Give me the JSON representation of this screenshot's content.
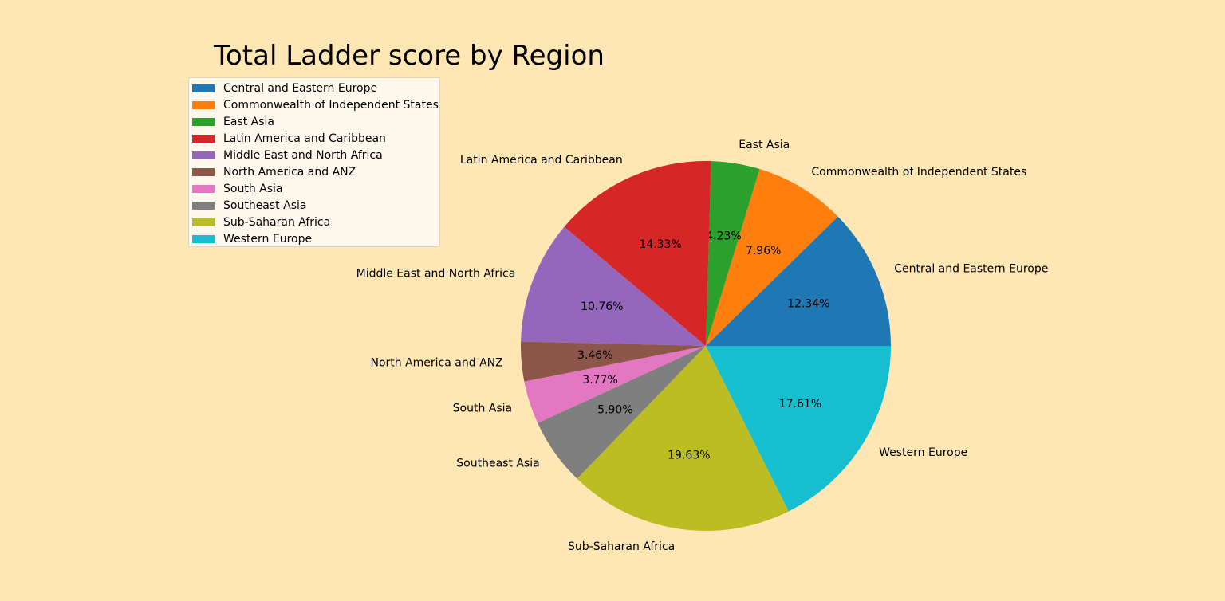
{
  "chart_data": {
    "type": "pie",
    "title": "Total Ladder score by Region",
    "categories": [
      "Central and Eastern Europe",
      "Commonwealth of Independent States",
      "East Asia",
      "Latin America and Caribbean",
      "Middle East and North Africa",
      "North America and ANZ",
      "South Asia",
      "Southeast Asia",
      "Sub-Saharan Africa",
      "Western Europe"
    ],
    "values": [
      12.34,
      7.96,
      4.23,
      14.33,
      10.76,
      3.46,
      3.77,
      5.9,
      19.63,
      17.61
    ],
    "value_labels": [
      "12.34%",
      "7.96%",
      "4.23%",
      "14.33%",
      "10.76%",
      "3.46%",
      "3.77%",
      "5.90%",
      "19.63%",
      "17.61%"
    ],
    "colors": [
      "#1f77b4",
      "#ff7f0e",
      "#2ca02c",
      "#d62728",
      "#9467bd",
      "#8c564b",
      "#e377c2",
      "#7f7f7f",
      "#bcbd22",
      "#17becf"
    ],
    "start_angle_deg": 0,
    "direction": "counterclockwise",
    "legend_position": "upper-left",
    "background_color": "#ffe6b5"
  }
}
